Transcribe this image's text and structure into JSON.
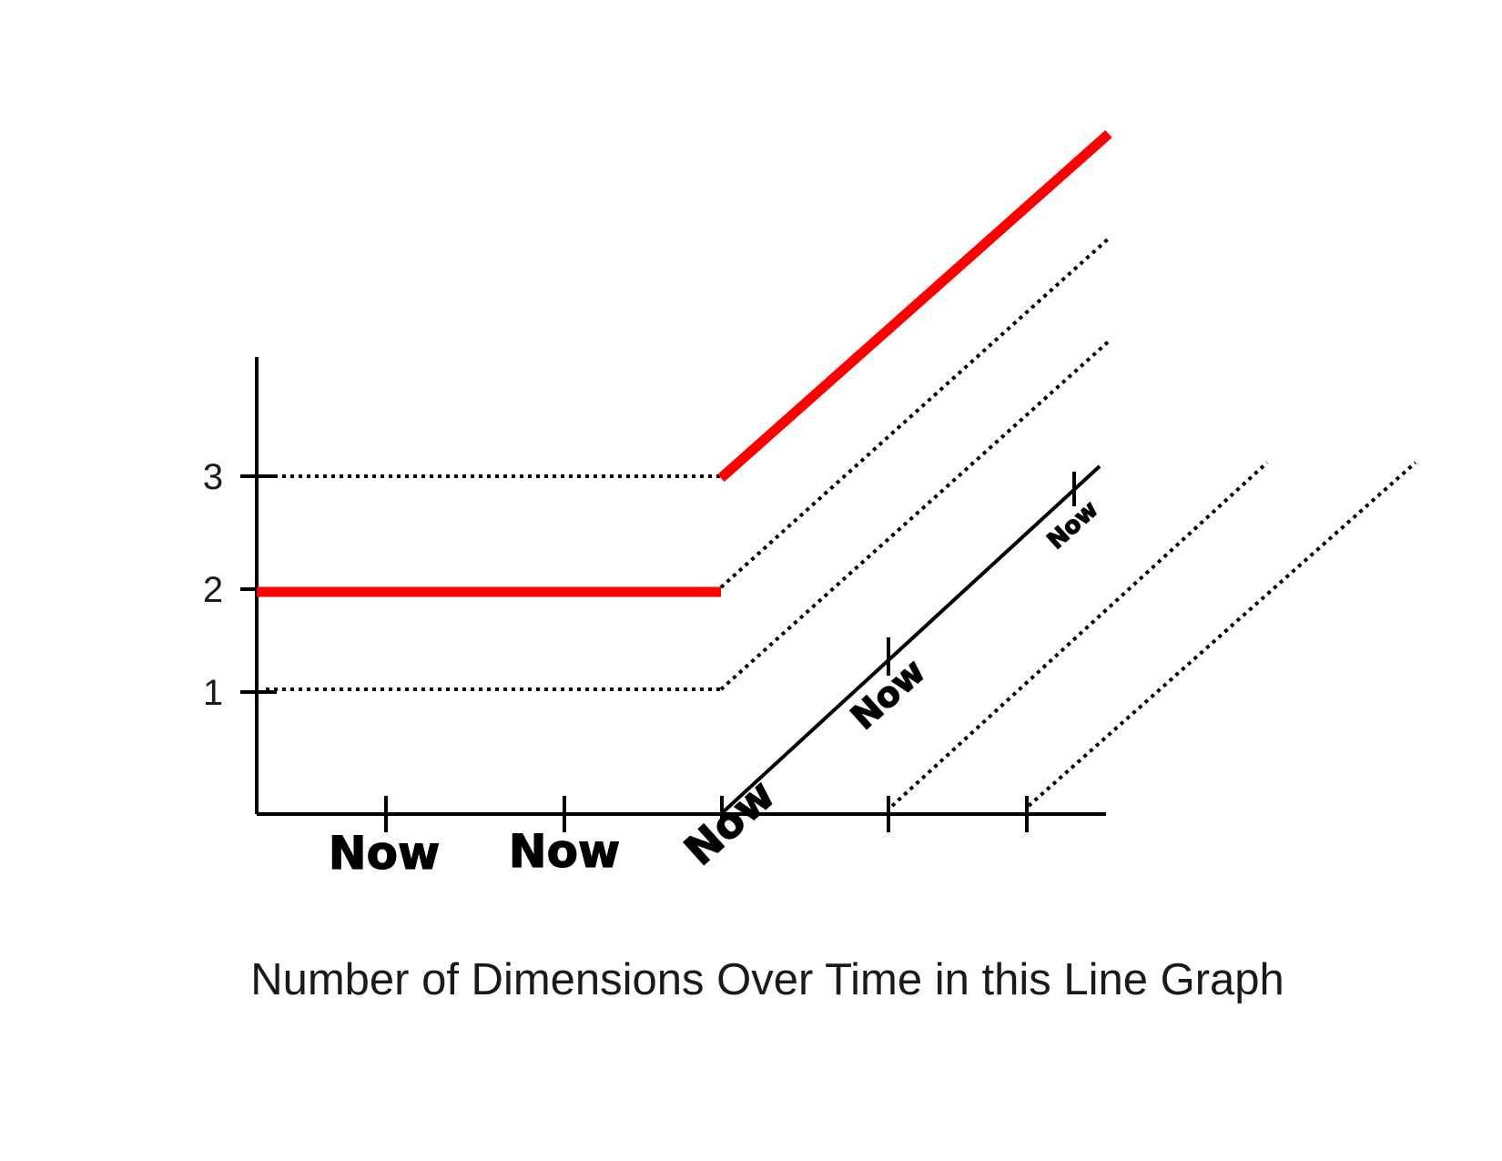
{
  "chart_data": {
    "type": "line",
    "caption": "Number of Dimensions Over Time in this Line Graph",
    "y_ticks": [
      "1",
      "2",
      "3"
    ],
    "x_tick_labels": [
      "Now",
      "Now",
      "Now"
    ],
    "diagonal_axis_labels": [
      "Now",
      "Now"
    ],
    "series": [
      {
        "color": "#ff0000",
        "points": [
          [
            0,
            2
          ],
          [
            5,
            2
          ]
        ]
      },
      {
        "color": "#ff0000",
        "points": [
          [
            5,
            3
          ],
          [
            10,
            6.0
          ]
        ]
      }
    ],
    "ylim": [
      0,
      3.8
    ],
    "grid": false
  },
  "colors": {
    "highlight": "#ff0000",
    "axis": "#000000"
  }
}
